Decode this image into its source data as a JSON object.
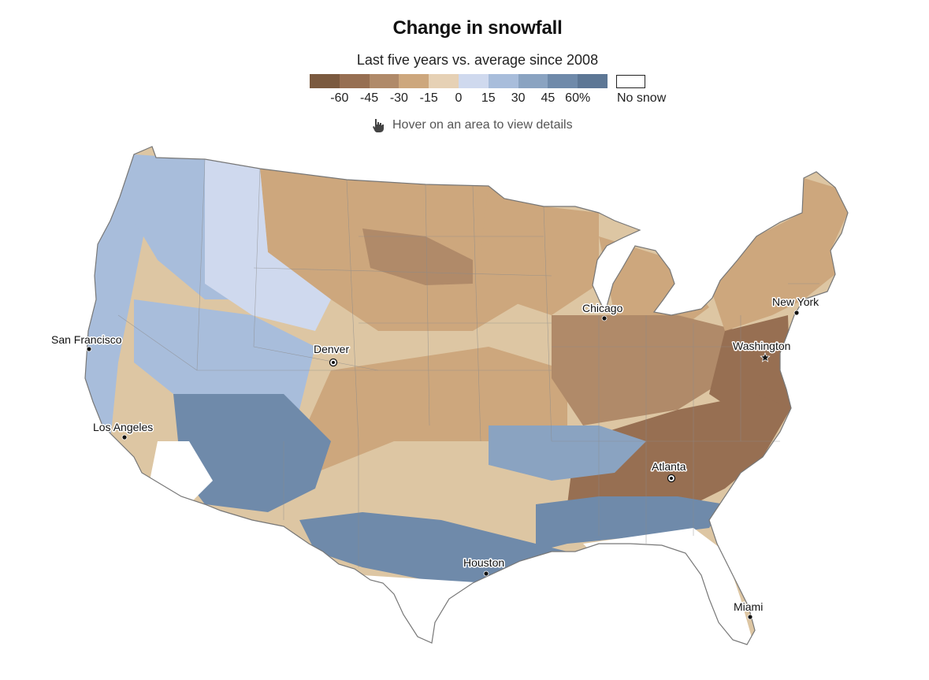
{
  "title": "Change in snowfall",
  "subtitle": "Last five years vs. average since 2008",
  "legend": {
    "colors": [
      "#7b5a3f",
      "#976f52",
      "#b08a69",
      "#cda77d",
      "#e6d1b5",
      "#cfd9ee",
      "#a8bddb",
      "#8aa3c1",
      "#6f8aaa",
      "#5d7795"
    ],
    "ticks": [
      "-60",
      "-45",
      "-30",
      "-15",
      "0",
      "15",
      "30",
      "45",
      "60%"
    ],
    "no_snow_label": "No snow",
    "no_snow_color": "#ffffff"
  },
  "hint": {
    "text": "Hover on an area to view details",
    "icon": "hand-pointer-icon"
  },
  "cities": [
    {
      "name": "San Francisco",
      "marker": "dot"
    },
    {
      "name": "Los Angeles",
      "marker": "dot"
    },
    {
      "name": "Denver",
      "marker": "capital"
    },
    {
      "name": "Chicago",
      "marker": "dot"
    },
    {
      "name": "New York",
      "marker": "dot"
    },
    {
      "name": "Washington",
      "marker": "star"
    },
    {
      "name": "Atlanta",
      "marker": "capital"
    },
    {
      "name": "Houston",
      "marker": "dot"
    },
    {
      "name": "Miami",
      "marker": "dot"
    }
  ],
  "regions": [
    {
      "id": "west-coast",
      "value": 20
    },
    {
      "id": "pacific-northwest",
      "value": 25
    },
    {
      "id": "northern-rockies",
      "value": 10
    },
    {
      "id": "great-basin",
      "value": 30
    },
    {
      "id": "southwest",
      "value": 50
    },
    {
      "id": "southern-plains",
      "value": -15
    },
    {
      "id": "northern-plains",
      "value": -20
    },
    {
      "id": "dakotas-core",
      "value": -40
    },
    {
      "id": "upper-midwest",
      "value": -15
    },
    {
      "id": "great-lakes",
      "value": -20
    },
    {
      "id": "ohio-valley",
      "value": -35
    },
    {
      "id": "northeast",
      "value": -25
    },
    {
      "id": "mid-atlantic",
      "value": -45
    },
    {
      "id": "southeast",
      "value": -55
    },
    {
      "id": "tennessee-valley",
      "value": 35
    },
    {
      "id": "gulf-coast",
      "value": 55
    },
    {
      "id": "texas-south",
      "value": 50
    }
  ]
}
